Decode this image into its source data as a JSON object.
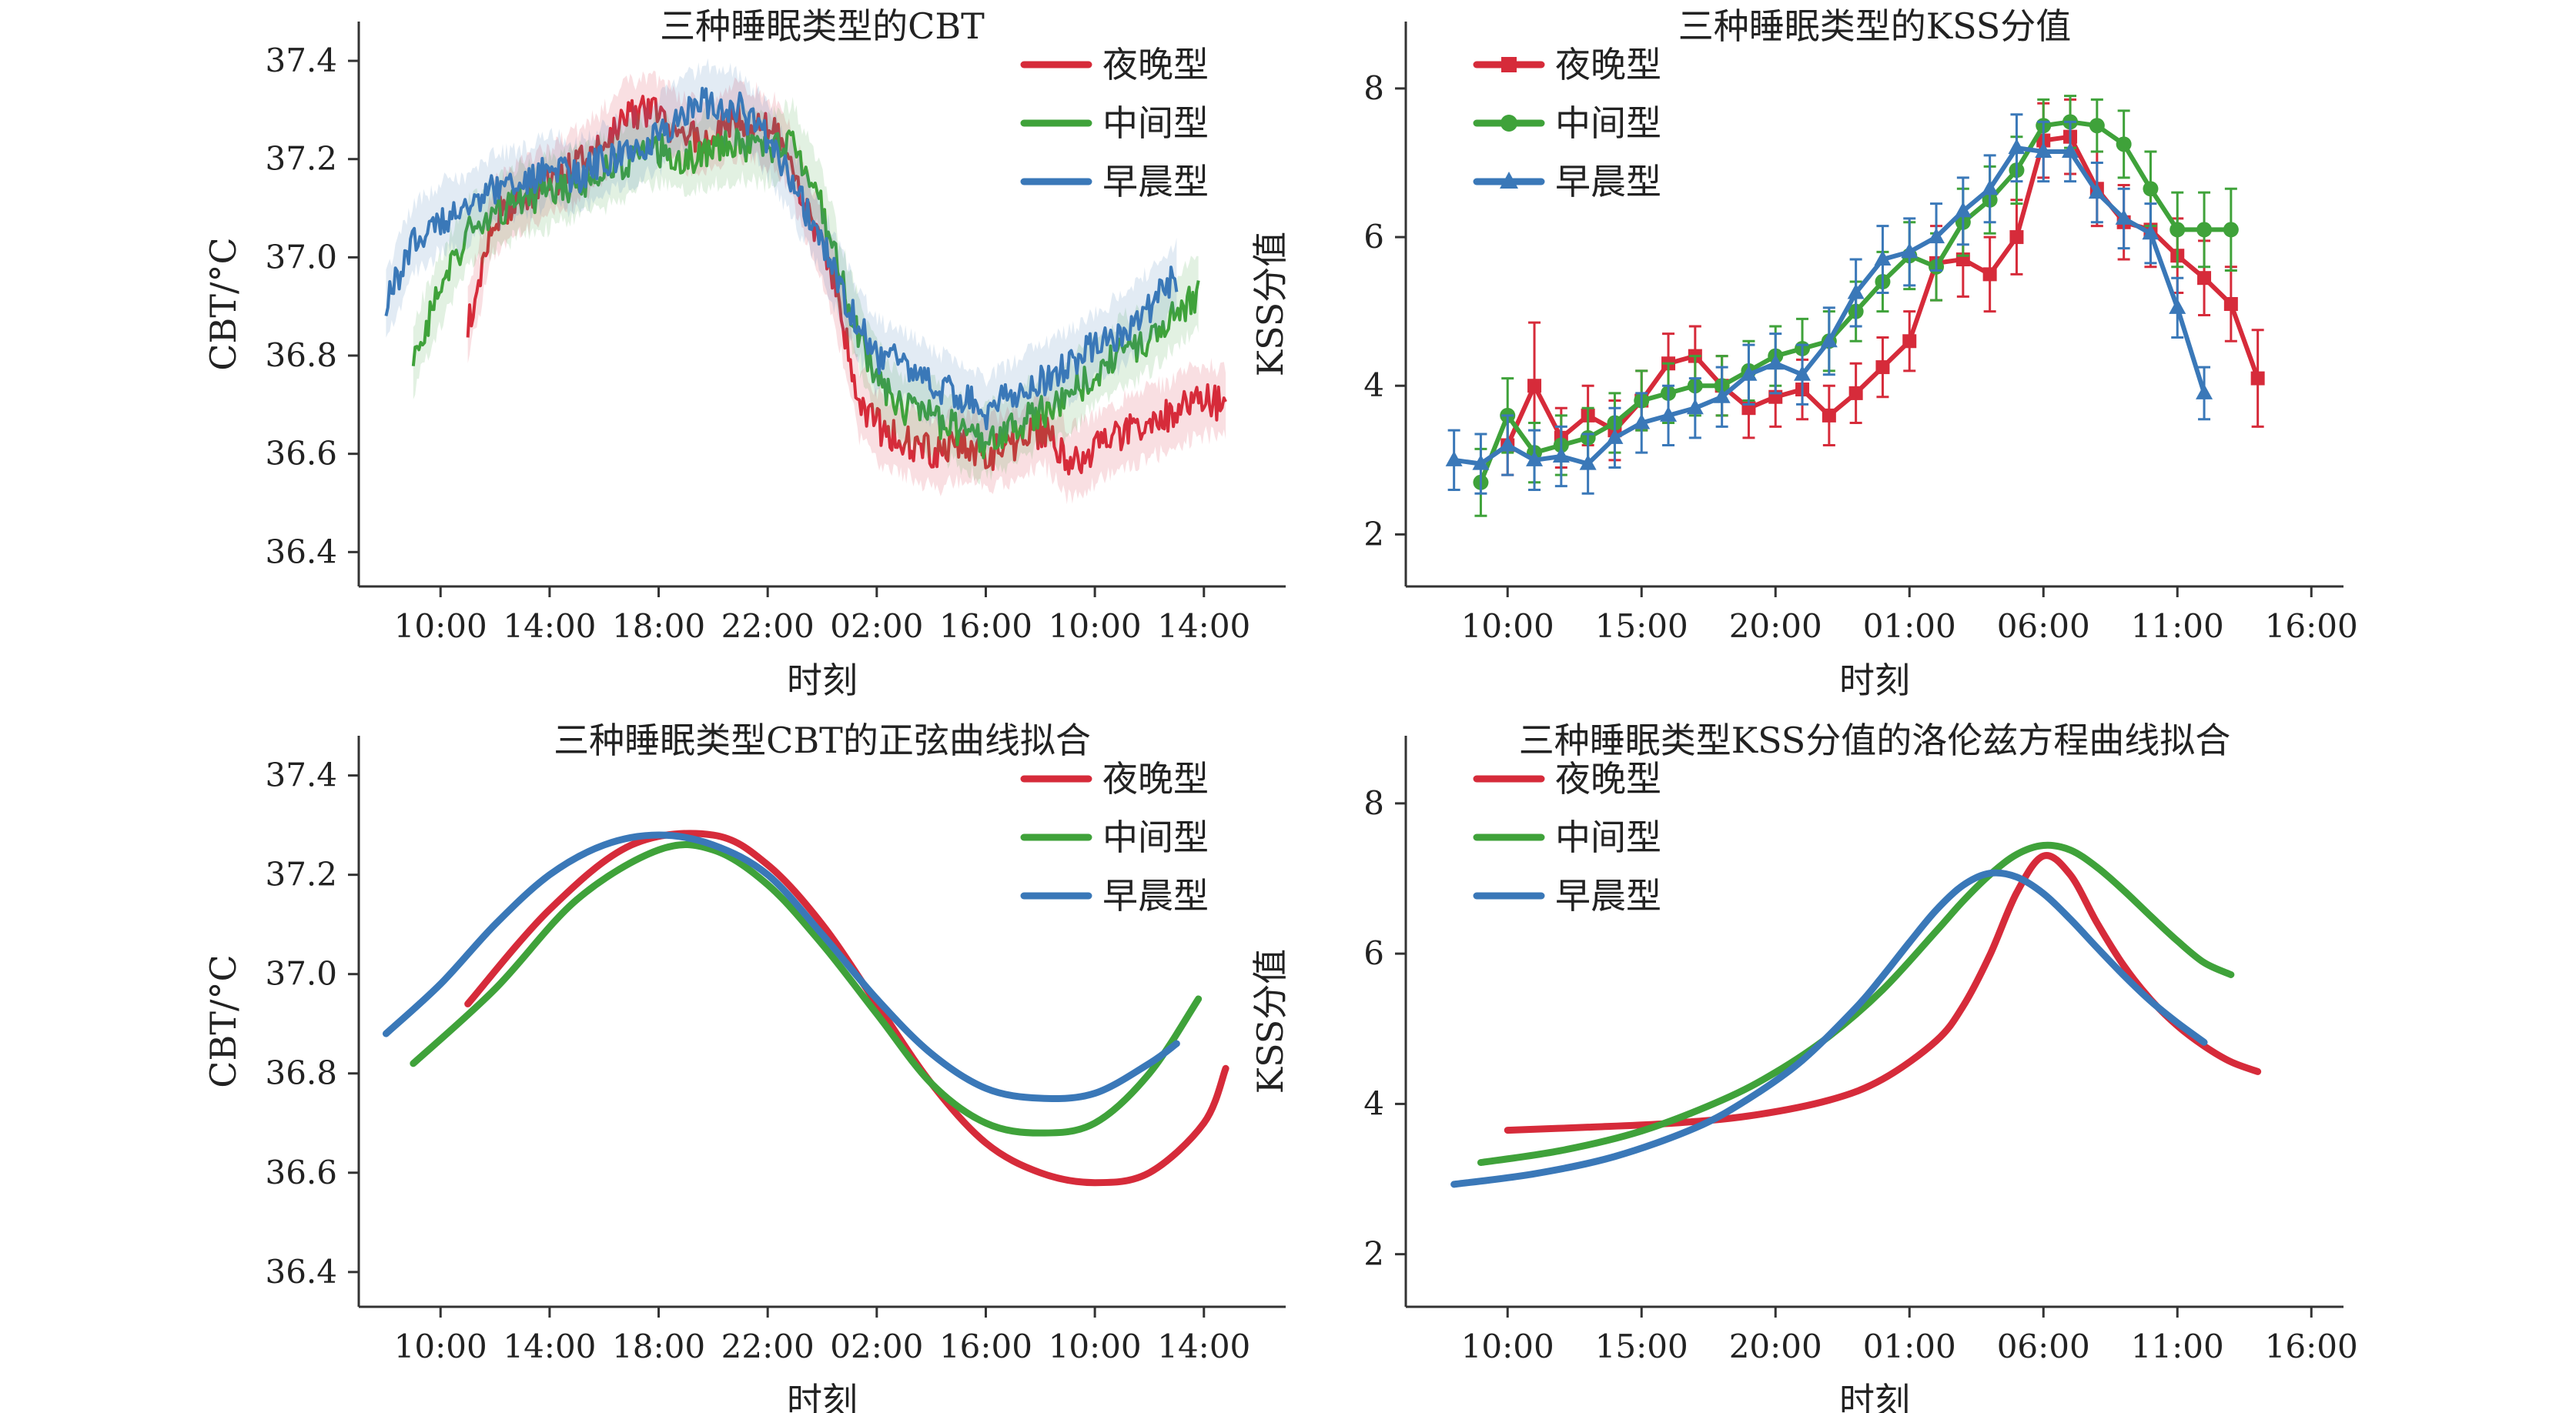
{
  "colors": {
    "evening": "#d62b3a",
    "intermediate": "#3fa23a",
    "morning": "#3a78b8"
  },
  "chart_data": [
    {
      "id": "cbt-raw",
      "type": "line",
      "title": "三种睡眠类型的CBT",
      "xlabel": "时刻",
      "ylabel": "CBT/°C",
      "xticks": [
        "10:00",
        "14:00",
        "18:00",
        "22:00",
        "02:00",
        "16:00",
        "10:00",
        "14:00"
      ],
      "xtick_pos": [
        2,
        6,
        10,
        14,
        18,
        22,
        26,
        30
      ],
      "xlim": [
        -1,
        33
      ],
      "ylim": [
        36.33,
        37.48
      ],
      "yticks": [
        36.4,
        36.6,
        36.8,
        37.0,
        37.2,
        37.4
      ],
      "ytick_labels": [
        "36.4",
        "36.6",
        "36.8",
        "37.0",
        "37.2",
        "37.4"
      ],
      "legend": "top-right",
      "shaded_band": true,
      "series": [
        {
          "name": "夜晚型",
          "color_key": "evening",
          "x_range": [
            3.0,
            30.8
          ],
          "values": [
            36.86,
            37.08,
            37.12,
            37.15,
            37.18,
            37.22,
            37.28,
            37.3,
            37.26,
            37.24,
            37.28,
            37.27,
            37.24,
            37.1,
            36.95,
            36.7,
            36.64,
            36.62,
            36.6,
            36.62,
            36.6,
            36.62,
            36.65,
            36.58,
            36.61,
            36.64,
            36.66,
            36.68,
            36.71,
            36.7
          ]
        },
        {
          "name": "中间型",
          "color_key": "intermediate",
          "x_range": [
            1.0,
            29.8
          ],
          "values": [
            36.8,
            36.93,
            37.05,
            37.08,
            37.12,
            37.13,
            37.15,
            37.17,
            37.2,
            37.22,
            37.2,
            37.22,
            37.23,
            37.22,
            37.24,
            37.12,
            36.92,
            36.76,
            36.69,
            36.68,
            36.65,
            36.62,
            36.65,
            36.68,
            36.7,
            36.76,
            36.8,
            36.83,
            36.88,
            36.93
          ]
        },
        {
          "name": "早晨型",
          "color_key": "morning",
          "x_range": [
            0.0,
            29.0
          ],
          "values": [
            36.9,
            37.04,
            37.08,
            37.1,
            37.14,
            37.15,
            37.18,
            37.16,
            37.2,
            37.22,
            37.25,
            37.3,
            37.32,
            37.3,
            37.24,
            37.14,
            37.03,
            36.9,
            36.8,
            36.78,
            36.74,
            36.72,
            36.68,
            36.72,
            36.75,
            36.78,
            36.82,
            36.85,
            36.9,
            36.96
          ]
        }
      ]
    },
    {
      "id": "kss-raw",
      "type": "line",
      "title": "三种睡眠类型的KSS分值",
      "xlabel": "时刻",
      "ylabel": "KSS分值",
      "xticks": [
        "10:00",
        "15:00",
        "20:00",
        "01:00",
        "06:00",
        "11:00",
        "16:00"
      ],
      "xtick_pos": [
        10,
        15,
        20,
        25,
        30,
        35,
        40
      ],
      "xlim": [
        6.2,
        41.2
      ],
      "ylim": [
        1.3,
        8.9
      ],
      "yticks": [
        2,
        4,
        6,
        8
      ],
      "ytick_labels": [
        "2",
        "4",
        "6",
        "8"
      ],
      "legend": "top-left",
      "series": [
        {
          "name": "夜晚型",
          "color_key": "evening",
          "marker": "square",
          "x": [
            10,
            11,
            12,
            13,
            14,
            15,
            16,
            17,
            18,
            19,
            20,
            21,
            22,
            23,
            24,
            25,
            26,
            27,
            28,
            29,
            30,
            31,
            32,
            33,
            34,
            35,
            36,
            37,
            38
          ],
          "y": [
            3.2,
            4.0,
            3.3,
            3.6,
            3.4,
            3.8,
            4.3,
            4.4,
            4.0,
            3.7,
            3.85,
            3.95,
            3.6,
            3.9,
            4.25,
            4.6,
            5.65,
            5.7,
            5.5,
            6.0,
            7.3,
            7.35,
            6.65,
            6.2,
            6.1,
            5.75,
            5.45,
            5.1,
            4.1
          ],
          "err": [
            0.4,
            0.85,
            0.4,
            0.4,
            0.4,
            0.4,
            0.4,
            0.4,
            0.4,
            0.4,
            0.4,
            0.4,
            0.4,
            0.4,
            0.4,
            0.4,
            0.5,
            0.5,
            0.5,
            0.5,
            0.5,
            0.5,
            0.5,
            0.5,
            0.5,
            0.5,
            0.5,
            0.5,
            0.65
          ]
        },
        {
          "name": "中间型",
          "color_key": "intermediate",
          "marker": "circle",
          "x": [
            9,
            10,
            11,
            12,
            13,
            14,
            15,
            16,
            17,
            18,
            19,
            20,
            21,
            22,
            23,
            24,
            25,
            26,
            27,
            28,
            29,
            30,
            31,
            32,
            33,
            34,
            35,
            36,
            37
          ],
          "y": [
            2.7,
            3.6,
            3.1,
            3.2,
            3.3,
            3.5,
            3.8,
            3.9,
            4.0,
            4.0,
            4.2,
            4.4,
            4.5,
            4.6,
            5.0,
            5.4,
            5.75,
            5.6,
            6.2,
            6.5,
            6.9,
            7.5,
            7.55,
            7.5,
            7.25,
            6.65,
            6.1,
            6.1,
            6.1
          ],
          "err": [
            0.45,
            0.5,
            0.4,
            0.4,
            0.4,
            0.4,
            0.4,
            0.4,
            0.4,
            0.4,
            0.4,
            0.4,
            0.4,
            0.4,
            0.4,
            0.4,
            0.45,
            0.45,
            0.45,
            0.45,
            0.45,
            0.35,
            0.35,
            0.35,
            0.45,
            0.5,
            0.5,
            0.5,
            0.55
          ]
        },
        {
          "name": "早晨型",
          "color_key": "morning",
          "marker": "triangle",
          "x": [
            8,
            9,
            10,
            11,
            12,
            13,
            14,
            15,
            16,
            17,
            18,
            19,
            20,
            21,
            22,
            23,
            24,
            25,
            26,
            27,
            28,
            29,
            30,
            31,
            32,
            33,
            34,
            35,
            36
          ],
          "y": [
            3.0,
            2.95,
            3.2,
            3.0,
            3.05,
            2.95,
            3.3,
            3.5,
            3.6,
            3.7,
            3.85,
            4.15,
            4.3,
            4.15,
            4.6,
            5.25,
            5.7,
            5.8,
            6.0,
            6.35,
            6.65,
            7.2,
            7.15,
            7.15,
            6.6,
            6.25,
            6.05,
            5.05,
            3.9
          ],
          "err": [
            0.4,
            0.4,
            0.4,
            0.4,
            0.4,
            0.4,
            0.4,
            0.4,
            0.4,
            0.4,
            0.4,
            0.4,
            0.4,
            0.4,
            0.45,
            0.45,
            0.45,
            0.45,
            0.45,
            0.45,
            0.45,
            0.45,
            0.4,
            0.4,
            0.4,
            0.4,
            0.4,
            0.4,
            0.35
          ]
        }
      ]
    },
    {
      "id": "cbt-fit",
      "type": "line",
      "title": "三种睡眠类型CBT的正弦曲线拟合",
      "xlabel": "时刻",
      "ylabel": "CBT/°C",
      "xticks": [
        "10:00",
        "14:00",
        "18:00",
        "22:00",
        "02:00",
        "16:00",
        "10:00",
        "14:00"
      ],
      "xtick_pos": [
        2,
        6,
        10,
        14,
        18,
        22,
        26,
        30
      ],
      "xlim": [
        -1,
        33
      ],
      "ylim": [
        36.33,
        37.48
      ],
      "yticks": [
        36.4,
        36.6,
        36.8,
        37.0,
        37.2,
        37.4
      ],
      "ytick_labels": [
        "36.4",
        "36.6",
        "36.8",
        "37.0",
        "37.2",
        "37.4"
      ],
      "legend": "top-right",
      "series": [
        {
          "name": "夜晚型",
          "color_key": "evening",
          "x": [
            3.0,
            6.0,
            9.0,
            12.0,
            14.0,
            16.0,
            18.0,
            20.0,
            22.0,
            24.0,
            26.0,
            28.0,
            30.0,
            30.8
          ],
          "y": [
            36.94,
            37.13,
            37.26,
            37.28,
            37.22,
            37.1,
            36.94,
            36.78,
            36.66,
            36.6,
            36.58,
            36.6,
            36.7,
            36.81
          ]
        },
        {
          "name": "中间型",
          "color_key": "intermediate",
          "x": [
            1.0,
            4.0,
            7.0,
            10.0,
            12.0,
            14.0,
            16.0,
            18.0,
            20.0,
            22.0,
            24.0,
            26.0,
            28.0,
            29.8
          ],
          "y": [
            36.82,
            36.97,
            37.15,
            37.25,
            37.25,
            37.18,
            37.06,
            36.92,
            36.78,
            36.7,
            36.68,
            36.7,
            36.8,
            36.95
          ]
        },
        {
          "name": "早晨型",
          "color_key": "morning",
          "x": [
            0.0,
            2.0,
            4.0,
            6.0,
            8.0,
            10.0,
            12.0,
            14.0,
            16.0,
            18.0,
            20.0,
            22.0,
            24.0,
            26.0,
            28.0,
            29.0
          ],
          "y": [
            36.88,
            36.98,
            37.1,
            37.2,
            37.26,
            37.28,
            37.26,
            37.2,
            37.08,
            36.95,
            36.84,
            36.77,
            36.75,
            36.76,
            36.82,
            36.86
          ]
        }
      ]
    },
    {
      "id": "kss-fit",
      "type": "line",
      "title": "三种睡眠类型KSS分值的洛伦兹方程曲线拟合",
      "xlabel": "时刻",
      "ylabel": "KSS分值",
      "xticks": [
        "10:00",
        "15:00",
        "20:00",
        "01:00",
        "06:00",
        "11:00",
        "16:00"
      ],
      "xtick_pos": [
        10,
        15,
        20,
        25,
        30,
        35,
        40
      ],
      "xlim": [
        6.2,
        41.2
      ],
      "ylim": [
        1.3,
        8.9
      ],
      "yticks": [
        2,
        4,
        6,
        8
      ],
      "ytick_labels": [
        "2",
        "4",
        "6",
        "8"
      ],
      "legend": "top-left",
      "series": [
        {
          "name": "夜晚型",
          "color_key": "evening",
          "x": [
            10,
            13,
            16,
            19,
            22,
            24,
            26,
            27,
            28,
            29,
            30,
            31,
            32,
            33,
            34,
            35,
            36,
            37,
            38
          ],
          "y": [
            3.65,
            3.69,
            3.74,
            3.84,
            4.05,
            4.33,
            4.84,
            5.3,
            5.98,
            6.81,
            7.3,
            7.05,
            6.41,
            5.84,
            5.39,
            5.04,
            4.77,
            4.56,
            4.43
          ]
        },
        {
          "name": "中间型",
          "color_key": "intermediate",
          "x": [
            9,
            12,
            15,
            18,
            20,
            22,
            24,
            26,
            27,
            28,
            29,
            30,
            31,
            32,
            33,
            34,
            35,
            36,
            37
          ],
          "y": [
            3.22,
            3.38,
            3.64,
            4.05,
            4.42,
            4.9,
            5.52,
            6.3,
            6.7,
            7.05,
            7.32,
            7.44,
            7.38,
            7.15,
            6.84,
            6.5,
            6.17,
            5.88,
            5.72
          ]
        },
        {
          "name": "早晨型",
          "color_key": "morning",
          "x": [
            8,
            11,
            14,
            17,
            19,
            21,
            23,
            24,
            25,
            26,
            27,
            28,
            29,
            30,
            31,
            32,
            33,
            34,
            35,
            36
          ],
          "y": [
            2.93,
            3.07,
            3.3,
            3.68,
            4.07,
            4.58,
            5.28,
            5.7,
            6.15,
            6.58,
            6.91,
            7.07,
            7.02,
            6.8,
            6.46,
            6.08,
            5.71,
            5.37,
            5.08,
            4.82
          ]
        }
      ]
    }
  ]
}
